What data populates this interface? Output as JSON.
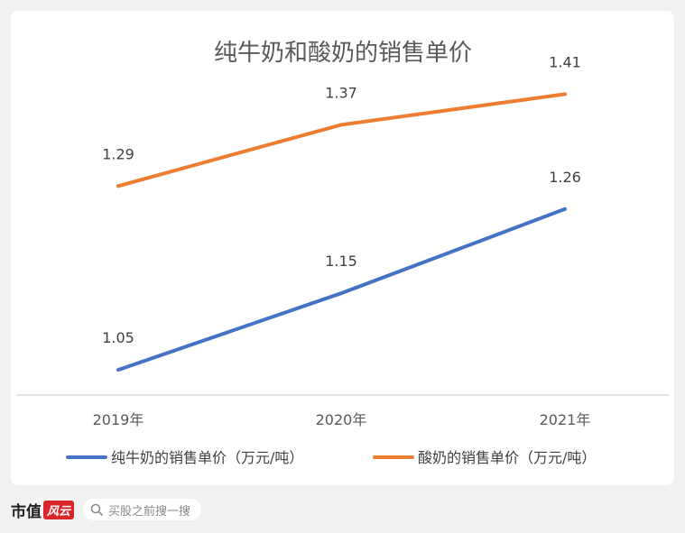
{
  "chart_data": {
    "type": "line",
    "title": "纯牛奶和酸奶的销售单价",
    "categories": [
      "2019年",
      "2020年",
      "2021年"
    ],
    "series": [
      {
        "name": "纯牛奶的销售单价（万元/吨）",
        "values": [
          1.05,
          1.15,
          1.26
        ],
        "labels": [
          "1.05",
          "1.15",
          "1.26"
        ],
        "color": "#4472c4"
      },
      {
        "name": "酸奶的销售单价（万元/吨）",
        "values": [
          1.29,
          1.37,
          1.41
        ],
        "labels": [
          "1.29",
          "1.37",
          "1.41"
        ],
        "color": "#ed7d31"
      }
    ],
    "ylim": [
      0.97,
      1.5
    ],
    "grid": false,
    "legend_position": "bottom"
  },
  "footer": {
    "brand_name": "市值",
    "brand_mark": "风云",
    "search_placeholder": "买股之前搜一搜",
    "search_icon": "search-icon"
  }
}
